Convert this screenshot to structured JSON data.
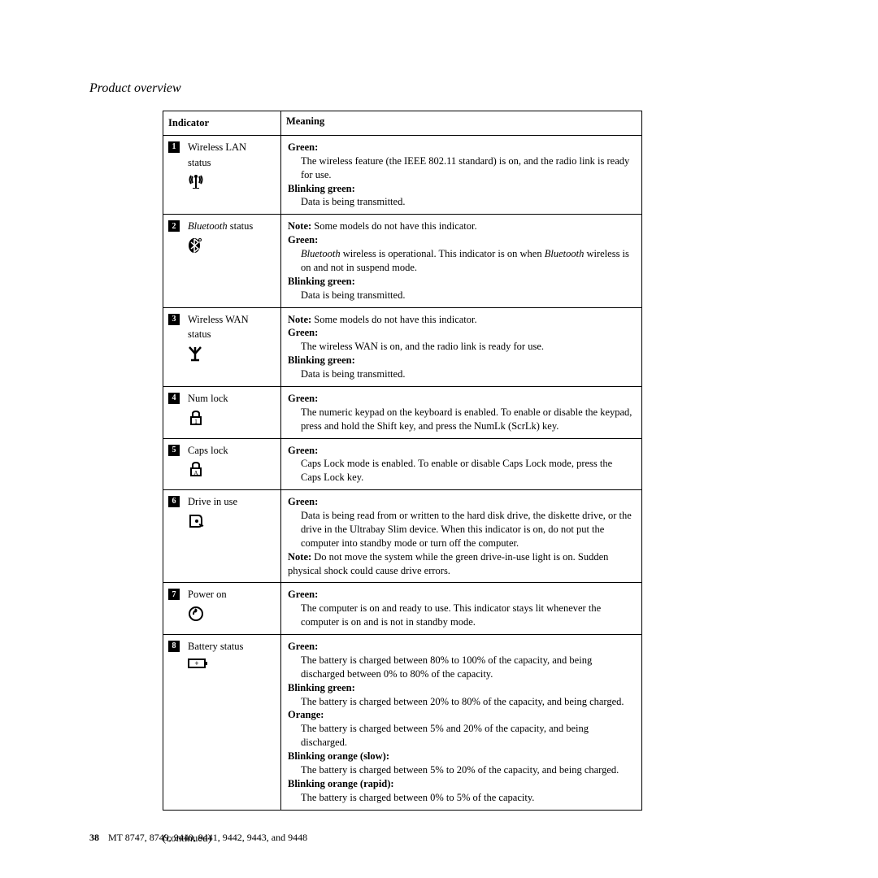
{
  "section_title": "Product overview",
  "table": {
    "headers": {
      "indicator": "Indicator",
      "meaning": "Meaning"
    },
    "rows": [
      {
        "num": "1",
        "label_line1": "Wireless LAN",
        "label_line2": "status",
        "icon": "wlan-icon",
        "meaning_items": [
          {
            "t": "dt",
            "text": "Green:"
          },
          {
            "t": "dd",
            "text": "The wireless feature (the IEEE 802.11 standard) is on, and the radio link is ready for use."
          },
          {
            "t": "dt",
            "text": "Blinking green:"
          },
          {
            "t": "dd",
            "text": "Data is being transmitted."
          }
        ]
      },
      {
        "num": "2",
        "label_italic": "Bluetooth",
        "label_after": " status",
        "icon": "bluetooth-icon",
        "note": "Some models do not have this indicator.",
        "meaning_items": [
          {
            "t": "dt",
            "text": "Green:"
          },
          {
            "t": "dd",
            "html": "bt_operational"
          },
          {
            "t": "dt",
            "text": "Blinking green:"
          },
          {
            "t": "dd",
            "text": "Data is being transmitted."
          }
        ],
        "bt_operational_pre": "Bluetooth",
        "bt_operational_main": " wireless is operational. This indicator is on when ",
        "bt_operational_pre2": "Bluetooth",
        "bt_operational_post": " wireless is on and not in suspend mode."
      },
      {
        "num": "3",
        "label_line1": "Wireless WAN",
        "label_line2": "status",
        "icon": "wwan-icon",
        "note": "Some models do not have this indicator.",
        "meaning_items": [
          {
            "t": "dt",
            "text": "Green:"
          },
          {
            "t": "dd",
            "text": "The wireless WAN is on, and the radio link is ready for use."
          },
          {
            "t": "dt",
            "text": "Blinking green:"
          },
          {
            "t": "dd",
            "text": "Data is being transmitted."
          }
        ]
      },
      {
        "num": "4",
        "label_line1": "Num lock",
        "icon": "numlock-icon",
        "meaning_items": [
          {
            "t": "dt",
            "text": "Green:"
          },
          {
            "t": "dd",
            "text": "The numeric keypad on the keyboard is enabled. To enable or disable the keypad, press and hold the Shift key, and press the NumLk (ScrLk) key."
          }
        ]
      },
      {
        "num": "5",
        "label_line1": "Caps lock",
        "icon": "capslock-icon",
        "meaning_items": [
          {
            "t": "dt",
            "text": "Green:"
          },
          {
            "t": "dd",
            "text": "Caps Lock mode is enabled. To enable or disable Caps Lock mode, press the Caps Lock key."
          }
        ]
      },
      {
        "num": "6",
        "label_line1": "Drive in use",
        "icon": "drive-icon",
        "meaning_items": [
          {
            "t": "dt",
            "text": "Green:"
          },
          {
            "t": "dd",
            "text": "Data is being read from or written to the hard disk drive, the diskette drive, or the drive in the Ultrabay Slim device. When this indicator is on, do not put the computer into standby mode or turn off the computer."
          }
        ],
        "note_after": "Do not move the system while the green drive-in-use light is on. Sudden physical shock could cause drive errors."
      },
      {
        "num": "7",
        "label_line1": "Power on",
        "icon": "power-icon",
        "meaning_items": [
          {
            "t": "dt",
            "text": "Green:"
          },
          {
            "t": "dd",
            "text": "The computer is on and ready to use. This indicator stays lit whenever the computer is on and is not in standby mode."
          }
        ]
      },
      {
        "num": "8",
        "label_line1": "Battery status",
        "icon": "battery-icon",
        "meaning_items": [
          {
            "t": "dt",
            "text": "Green:"
          },
          {
            "t": "dd",
            "text": "The battery is charged between 80% to 100% of the capacity, and being discharged between 0% to 80% of the capacity."
          },
          {
            "t": "dt",
            "text": "Blinking green:"
          },
          {
            "t": "dd",
            "text": "The battery is charged between 20% to 80% of the capacity, and being charged."
          },
          {
            "t": "dt",
            "text": "Orange:"
          },
          {
            "t": "dd",
            "text": "The battery is charged between 5% and 20% of the capacity, and being discharged."
          },
          {
            "t": "dt",
            "text": "Blinking orange (slow):"
          },
          {
            "t": "dd",
            "text": "The battery is charged between 5% to 20% of the capacity, and being charged."
          },
          {
            "t": "dt",
            "text": "Blinking orange (rapid):"
          },
          {
            "t": "dd",
            "text": "The battery is charged between 0% to 5% of the capacity."
          }
        ]
      }
    ]
  },
  "continued": "(continued)",
  "footer": {
    "page": "38",
    "text": "MT 8747, 8749, 9440, 9441, 9442, 9443, and 9448"
  },
  "note_word": "Note:"
}
